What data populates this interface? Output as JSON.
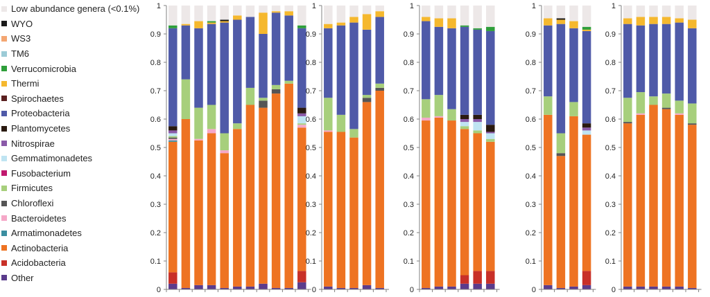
{
  "colors": {
    "Low abundance genera (<0.1%)": "#ede8e8",
    "WYO": "#1a1a1a",
    "WS3": "#f4a672",
    "TM6": "#9ccbd6",
    "Verrucomicrobia": "#2e9e3a",
    "Thermi": "#f5b82e",
    "Spirochaetes": "#5a1f1f",
    "Proteobacteria": "#4f5aa8",
    "Plantomycetes": "#2a1a10",
    "Nitrospirae": "#8a5aa8",
    "Gemmatimonadetes": "#bfe4f2",
    "Fusobacterium": "#c0186e",
    "Firmicutes": "#a7cf7c",
    "Chloroflexi": "#555555",
    "Bacteroidetes": "#f5a8c8",
    "Armatimonadetes": "#3a8ea0",
    "Actinobacteria": "#ee7322",
    "Acidobacteria": "#c83028",
    "Other": "#5b3c8c"
  },
  "chart_data": [
    {
      "type": "bar",
      "stacked": true,
      "legend": [
        "Low abundance genera (<0.1%)",
        "WYO",
        "WS3",
        "TM6",
        "Verrucomicrobia",
        "Thermi",
        "Spirochaetes",
        "Proteobacteria",
        "Plantomycetes",
        "Nitrospirae",
        "Gemmatimonadetes",
        "Fusobacterium",
        "Firmicutes",
        "Chloroflexi",
        "Bacteroidetes",
        "Armatimonadetes",
        "Actinobacteria",
        "Acidobacteria",
        "Other"
      ],
      "ylim": [
        0,
        1
      ],
      "yticks": [
        "0",
        "0.1",
        "0.2",
        "0.3",
        "0.4",
        "0.5",
        "0.6",
        "0.7",
        "0.8",
        "0.9",
        "1"
      ],
      "panels": [
        {
          "bars": [
            {
              "Other": 0.02,
              "Acidobacteria": 0.04,
              "Actinobacteria": 0.46,
              "Armatimonadetes": 0.005,
              "Bacteroidetes": 0.005,
              "Chloroflexi": 0.005,
              "Firmicutes": 0.005,
              "Gemmatimonadetes": 0.01,
              "Nitrospirae": 0.01,
              "Plantomycetes": 0.015,
              "Proteobacteria": 0.345,
              "Verrucomicrobia": 0.01,
              "Low abundance genera (<0.1%)": 0.07
            },
            {
              "Other": 0.005,
              "Actinobacteria": 0.595,
              "Firmicutes": 0.14,
              "Proteobacteria": 0.19,
              "Thermi": 0.005,
              "Low abundance genera (<0.1%)": 0.065
            },
            {
              "Other": 0.015,
              "Actinobacteria": 0.51,
              "Bacteroidetes": 0.005,
              "Firmicutes": 0.11,
              "Proteobacteria": 0.28,
              "Thermi": 0.025,
              "Low abundance genera (<0.1%)": 0.055
            },
            {
              "Other": 0.015,
              "Actinobacteria": 0.535,
              "Bacteroidetes": 0.015,
              "Firmicutes": 0.085,
              "Proteobacteria": 0.285,
              "Verrucomicrobia": 0.005,
              "Thermi": 0.005,
              "Low abundance genera (<0.1%)": 0.055
            },
            {
              "Other": 0.005,
              "Actinobacteria": 0.475,
              "Bacteroidetes": 0.01,
              "Firmicutes": 0.06,
              "Proteobacteria": 0.39,
              "Thermi": 0.005,
              "WYO": 0.005,
              "Low abundance genera (<0.1%)": 0.05
            },
            {
              "Other": 0.01,
              "Actinobacteria": 0.555,
              "Firmicutes": 0.02,
              "Proteobacteria": 0.365,
              "Thermi": 0.015,
              "Low abundance genera (<0.1%)": 0.035
            },
            {
              "Other": 0.01,
              "Actinobacteria": 0.64,
              "Firmicutes": 0.06,
              "Proteobacteria": 0.25,
              "Low abundance genera (<0.1%)": 0.04
            },
            {
              "Other": 0.02,
              "Actinobacteria": 0.62,
              "Chloroflexi": 0.025,
              "Firmicutes": 0.01,
              "Proteobacteria": 0.225,
              "Thermi": 0.075,
              "Low abundance genera (<0.1%)": 0.025
            },
            {
              "Other": 0.005,
              "Actinobacteria": 0.685,
              "Chloroflexi": 0.015,
              "Firmicutes": 0.015,
              "Proteobacteria": 0.255,
              "Thermi": 0.005,
              "Low abundance genera (<0.1%)": 0.02
            },
            {
              "Other": 0.005,
              "Actinobacteria": 0.72,
              "Firmicutes": 0.01,
              "Proteobacteria": 0.23,
              "Thermi": 0.015,
              "Low abundance genera (<0.1%)": 0.02
            },
            {
              "Other": 0.025,
              "Acidobacteria": 0.04,
              "Actinobacteria": 0.505,
              "Bacteroidetes": 0.01,
              "Firmicutes": 0.005,
              "Gemmatimonadetes": 0.025,
              "Nitrospirae": 0.01,
              "Plantomycetes": 0.02,
              "Proteobacteria": 0.28,
              "Verrucomicrobia": 0.01,
              "Low abundance genera (<0.1%)": 0.07
            }
          ]
        },
        {
          "bars": [
            {
              "Other": 0.01,
              "Actinobacteria": 0.545,
              "Bacteroidetes": 0.005,
              "Firmicutes": 0.115,
              "Proteobacteria": 0.245,
              "Thermi": 0.015,
              "Low abundance genera (<0.1%)": 0.065
            },
            {
              "Other": 0.005,
              "Actinobacteria": 0.55,
              "Firmicutes": 0.06,
              "Proteobacteria": 0.315,
              "Thermi": 0.01,
              "Low abundance genera (<0.1%)": 0.06
            },
            {
              "Other": 0.005,
              "Actinobacteria": 0.53,
              "Firmicutes": 0.03,
              "Proteobacteria": 0.375,
              "Thermi": 0.02,
              "Low abundance genera (<0.1%)": 0.04
            },
            {
              "Other": 0.015,
              "Actinobacteria": 0.645,
              "Chloroflexi": 0.015,
              "Firmicutes": 0.01,
              "Proteobacteria": 0.23,
              "Thermi": 0.055,
              "Low abundance genera (<0.1%)": 0.03
            },
            {
              "Other": 0.005,
              "Actinobacteria": 0.695,
              "Chloroflexi": 0.01,
              "Firmicutes": 0.015,
              "Proteobacteria": 0.235,
              "Thermi": 0.02,
              "Low abundance genera (<0.1%)": 0.02
            }
          ]
        },
        {
          "bars": [
            {
              "Other": 0.005,
              "Actinobacteria": 0.59,
              "Bacteroidetes": 0.01,
              "Firmicutes": 0.065,
              "Proteobacteria": 0.275,
              "Thermi": 0.015,
              "Low abundance genera (<0.1%)": 0.04
            },
            {
              "Other": 0.01,
              "Actinobacteria": 0.595,
              "Bacteroidetes": 0.005,
              "Firmicutes": 0.075,
              "Proteobacteria": 0.24,
              "Thermi": 0.03,
              "Low abundance genera (<0.1%)": 0.045
            },
            {
              "Other": 0.01,
              "Actinobacteria": 0.585,
              "Firmicutes": 0.04,
              "Proteobacteria": 0.285,
              "Thermi": 0.035,
              "Low abundance genera (<0.1%)": 0.045
            },
            {
              "Other": 0.02,
              "Acidobacteria": 0.03,
              "Actinobacteria": 0.515,
              "Gemmatimonadetes": 0.015,
              "Firmicutes": 0.01,
              "Nitrospirae": 0.01,
              "Plantomycetes": 0.015,
              "Proteobacteria": 0.31,
              "Verrucomicrobia": 0.005,
              "Low abundance genera (<0.1%)": 0.07
            },
            {
              "Other": 0.02,
              "Acidobacteria": 0.045,
              "Actinobacteria": 0.485,
              "Gemmatimonadetes": 0.03,
              "Firmicutes": 0.01,
              "Nitrospirae": 0.01,
              "Plantomycetes": 0.015,
              "Proteobacteria": 0.3,
              "Verrucomicrobia": 0.005,
              "Low abundance genera (<0.1%)": 0.08
            },
            {
              "Other": 0.02,
              "Acidobacteria": 0.045,
              "Actinobacteria": 0.455,
              "Gemmatimonadetes": 0.02,
              "Firmicutes": 0.01,
              "Nitrospirae": 0.005,
              "Plantomycetes": 0.025,
              "Proteobacteria": 0.33,
              "Verrucomicrobia": 0.015,
              "Low abundance genera (<0.1%)": 0.075
            }
          ]
        },
        {
          "bars": [
            {
              "Other": 0.015,
              "Actinobacteria": 0.6,
              "Firmicutes": 0.065,
              "Proteobacteria": 0.25,
              "Thermi": 0.025,
              "Low abundance genera (<0.1%)": 0.045
            },
            {
              "Other": 0.005,
              "Actinobacteria": 0.465,
              "Chloroflexi": 0.01,
              "Firmicutes": 0.07,
              "Proteobacteria": 0.385,
              "Thermi": 0.015,
              "WYO": 0.005,
              "Low abundance genera (<0.1%)": 0.045
            },
            {
              "Other": 0.01,
              "Actinobacteria": 0.6,
              "Firmicutes": 0.05,
              "Proteobacteria": 0.26,
              "Thermi": 0.025,
              "Low abundance genera (<0.1%)": 0.055
            },
            {
              "Other": 0.015,
              "Acidobacteria": 0.05,
              "Actinobacteria": 0.48,
              "Gemmatimonadetes": 0.015,
              "Nitrospirae": 0.01,
              "Plantomycetes": 0.015,
              "Proteobacteria": 0.325,
              "Verrucomicrobia": 0.01,
              "Thermi": 0.005,
              "Low abundance genera (<0.1%)": 0.075
            }
          ]
        },
        {
          "bars": [
            {
              "Other": 0.01,
              "Actinobacteria": 0.575,
              "Chloroflexi": 0.005,
              "Firmicutes": 0.085,
              "Proteobacteria": 0.26,
              "Thermi": 0.02,
              "Low abundance genera (<0.1%)": 0.045
            },
            {
              "Other": 0.01,
              "Actinobacteria": 0.605,
              "Bacteroidetes": 0.005,
              "Firmicutes": 0.075,
              "Proteobacteria": 0.235,
              "Thermi": 0.03,
              "Low abundance genera (<0.1%)": 0.04
            },
            {
              "Other": 0.01,
              "Actinobacteria": 0.64,
              "Firmicutes": 0.03,
              "Proteobacteria": 0.255,
              "Thermi": 0.025,
              "Low abundance genera (<0.1%)": 0.04
            },
            {
              "Other": 0.01,
              "Actinobacteria": 0.625,
              "Chloroflexi": 0.005,
              "Firmicutes": 0.05,
              "Proteobacteria": 0.245,
              "Thermi": 0.025,
              "Low abundance genera (<0.1%)": 0.04
            },
            {
              "Other": 0.01,
              "Actinobacteria": 0.605,
              "Bacteroidetes": 0.005,
              "Firmicutes": 0.045,
              "Proteobacteria": 0.275,
              "Thermi": 0.015,
              "Low abundance genera (<0.1%)": 0.045
            },
            {
              "Other": 0.005,
              "Actinobacteria": 0.575,
              "Chloroflexi": 0.005,
              "Firmicutes": 0.07,
              "Proteobacteria": 0.265,
              "Thermi": 0.03,
              "Low abundance genera (<0.1%)": 0.05
            }
          ]
        }
      ]
    }
  ]
}
